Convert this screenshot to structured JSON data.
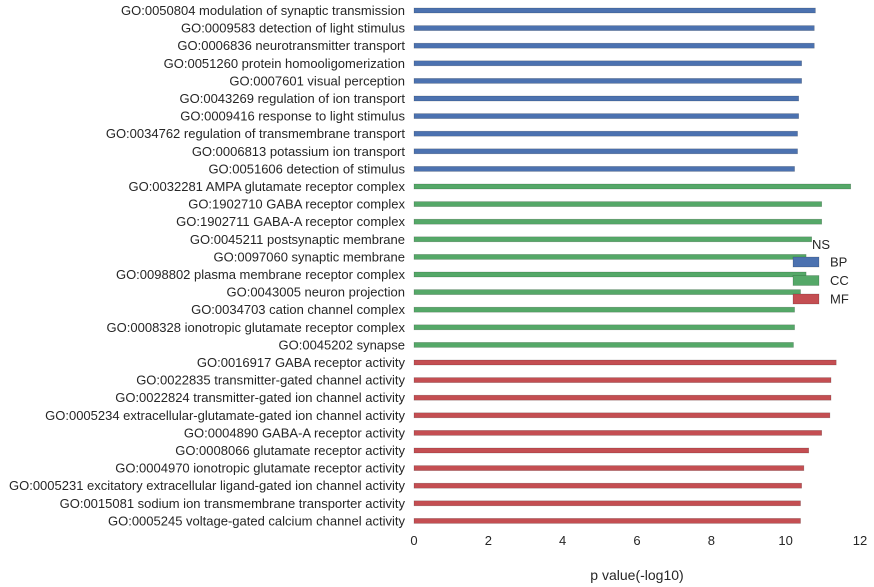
{
  "chart_data": {
    "type": "bar",
    "orientation": "horizontal",
    "title": "",
    "xlabel": "p value(-log10)",
    "ylabel": "",
    "xlim": [
      0,
      12
    ],
    "xticks": [
      "0",
      "2",
      "4",
      "6",
      "8",
      "10",
      "12"
    ],
    "grid": false,
    "legend": {
      "title": "NS",
      "placement": "right",
      "entries": [
        {
          "name": "BP",
          "color": "#4c72b0"
        },
        {
          "name": "CC",
          "color": "#55a868"
        },
        {
          "name": "MF",
          "color": "#c44e52"
        }
      ]
    },
    "categories": [
      {
        "label": "GO:0050804 modulation of synaptic transmission",
        "group": "BP",
        "value": 10.8
      },
      {
        "label": "GO:0009583 detection of light stimulus",
        "group": "BP",
        "value": 10.77
      },
      {
        "label": "GO:0006836 neurotransmitter transport",
        "group": "BP",
        "value": 10.77
      },
      {
        "label": "GO:0051260 protein homooligomerization",
        "group": "BP",
        "value": 10.43
      },
      {
        "label": "GO:0007601 visual perception",
        "group": "BP",
        "value": 10.43
      },
      {
        "label": "GO:0043269 regulation of ion transport",
        "group": "BP",
        "value": 10.35
      },
      {
        "label": "GO:0009416 response to light stimulus",
        "group": "BP",
        "value": 10.35
      },
      {
        "label": "GO:0034762 regulation of transmembrane transport",
        "group": "BP",
        "value": 10.32
      },
      {
        "label": "GO:0006813 potassium ion transport",
        "group": "BP",
        "value": 10.32
      },
      {
        "label": "GO:0051606 detection of stimulus",
        "group": "BP",
        "value": 10.24
      },
      {
        "label": "GO:0032281 AMPA glutamate receptor complex",
        "group": "CC",
        "value": 11.75
      },
      {
        "label": "GO:1902710 GABA receptor complex",
        "group": "CC",
        "value": 10.97
      },
      {
        "label": "GO:1902711 GABA-A receptor complex",
        "group": "CC",
        "value": 10.97
      },
      {
        "label": "GO:0045211 postsynaptic membrane",
        "group": "CC",
        "value": 10.7
      },
      {
        "label": "GO:0097060 synaptic membrane",
        "group": "CC",
        "value": 10.55
      },
      {
        "label": "GO:0098802 plasma membrane receptor complex",
        "group": "CC",
        "value": 10.55
      },
      {
        "label": "GO:0043005 neuron projection",
        "group": "CC",
        "value": 10.4
      },
      {
        "label": "GO:0034703 cation channel complex",
        "group": "CC",
        "value": 10.24
      },
      {
        "label": "GO:0008328 ionotropic glutamate receptor complex",
        "group": "CC",
        "value": 10.24
      },
      {
        "label": "GO:0045202 synapse",
        "group": "CC",
        "value": 10.21
      },
      {
        "label": "GO:0016917 GABA receptor activity",
        "group": "MF",
        "value": 11.36
      },
      {
        "label": "GO:0022835 transmitter-gated channel activity",
        "group": "MF",
        "value": 11.22
      },
      {
        "label": "GO:0022824 transmitter-gated ion channel activity",
        "group": "MF",
        "value": 11.22
      },
      {
        "label": "GO:0005234 extracellular-glutamate-gated ion channel activity",
        "group": "MF",
        "value": 11.19
      },
      {
        "label": "GO:0004890 GABA-A receptor activity",
        "group": "MF",
        "value": 10.97
      },
      {
        "label": "GO:0008066 glutamate receptor activity",
        "group": "MF",
        "value": 10.62
      },
      {
        "label": "GO:0004970 ionotropic glutamate receptor activity",
        "group": "MF",
        "value": 10.49
      },
      {
        "label": "GO:0005231 excitatory extracellular ligand-gated ion channel activity",
        "group": "MF",
        "value": 10.43
      },
      {
        "label": "GO:0015081 sodium ion transmembrane transporter activity",
        "group": "MF",
        "value": 10.4
      },
      {
        "label": "GO:0005245 voltage-gated calcium channel activity",
        "group": "MF",
        "value": 10.4
      }
    ]
  }
}
